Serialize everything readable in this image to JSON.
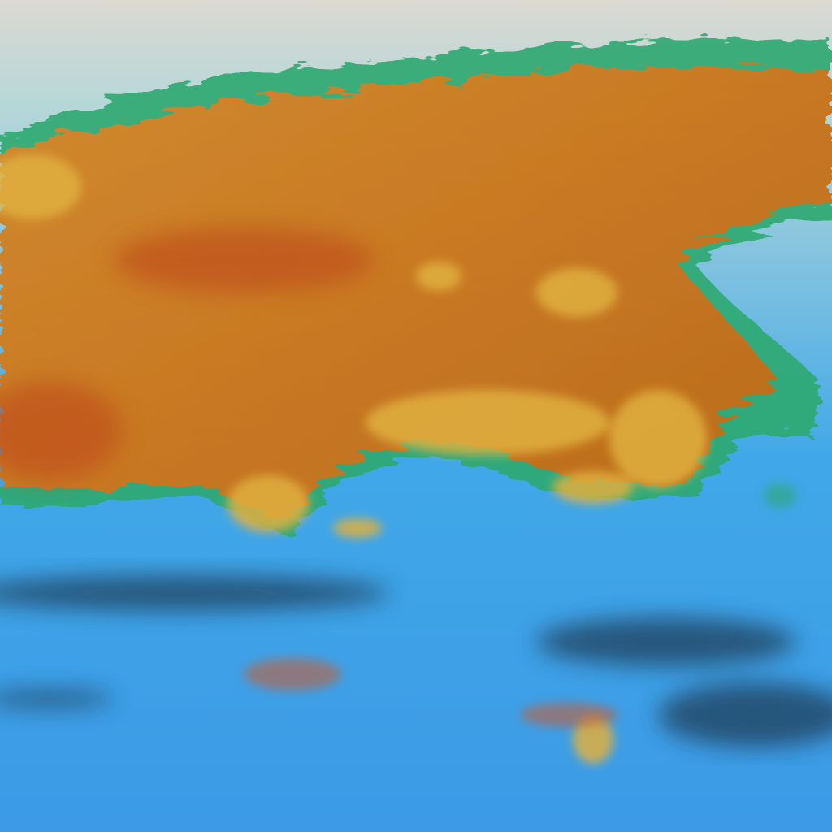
{
  "image": {
    "kind": "false-color satellite imagery",
    "colors": {
      "sky_top": "#d9d6d0",
      "sky_haze": "#9fd3d8",
      "land_orange": "#c87a22",
      "land_red": "#c0501c",
      "land_yellow": "#e0b040",
      "edge_green": "#2fa870",
      "edge_cyan": "#40e0c0",
      "sea_blue": "#3aa2e8",
      "sea_deep": "#2a70c8",
      "shadow_dark": "#1a3850"
    }
  }
}
